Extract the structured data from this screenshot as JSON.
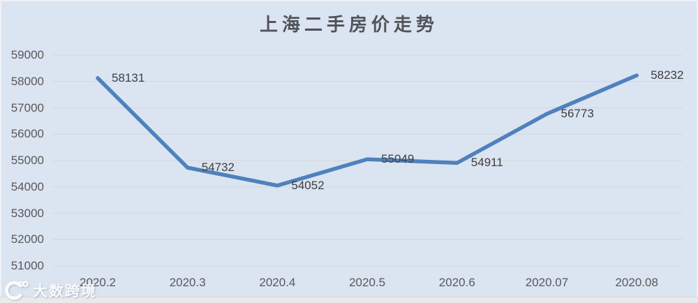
{
  "chart_data": {
    "type": "line",
    "title": "上海二手房价走势",
    "categories": [
      "2020.2",
      "2020.3",
      "2020.4",
      "2020.5",
      "2020.6",
      "2020.07",
      "2020.08"
    ],
    "values": [
      58131,
      54732,
      54052,
      55049,
      54911,
      56773,
      58232
    ],
    "yticks": [
      59000,
      58000,
      57000,
      56000,
      55000,
      54000,
      53000,
      52000,
      51000
    ],
    "ylim": [
      51000,
      59000
    ],
    "xlabel": "",
    "ylabel": "",
    "grid": true,
    "legend_position": "none",
    "data_labels_shown": true,
    "line_color": "#4f81bd",
    "plot_background": "#dbe4f1",
    "gridline_color": "#d5d9de",
    "axis_label_color": "#595959",
    "data_label_color": "#3d3f42"
  },
  "watermark": {
    "text": "大数跨境",
    "logo": "dashukuajing-logo"
  }
}
